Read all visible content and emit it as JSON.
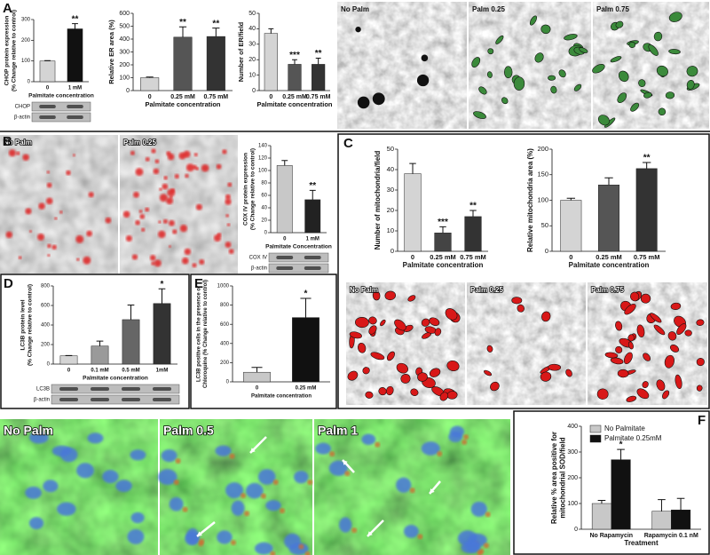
{
  "panel_letters": [
    "A",
    "B",
    "C",
    "D",
    "E",
    "F"
  ],
  "micrographs": [
    [
      "No Palm",
      "Palm 0.25",
      "Palm 0.75"
    ],
    [
      "No Palm",
      "Palm 0.25"
    ],
    [
      "No Palm",
      "Palm 0.25",
      "Palm 0.75"
    ],
    [
      "No Palm",
      "Palm 0.5",
      "Palm 1"
    ]
  ],
  "chart_data": [
    {
      "type": "bar",
      "ylabel": [
        "CHOP protein expression",
        "(% Change relative to control)"
      ],
      "xlabel": "Palmitate concentration",
      "categories": [
        "0",
        "1 mM"
      ],
      "values": [
        100,
        255
      ],
      "errors": [
        2,
        25
      ],
      "stars": [
        null,
        "**"
      ],
      "colors": [
        "#d4d4d4",
        "#111111"
      ],
      "ylim": [
        0,
        300
      ],
      "yticks": [
        0,
        100,
        200,
        300
      ],
      "blot": [
        "CHOP",
        "β-actin"
      ]
    },
    {
      "type": "bar",
      "ylabel": [
        "Relative ER area (%)"
      ],
      "xlabel": "Palmitate concentration",
      "categories": [
        "0",
        "0.25 mM",
        "0.75 mM"
      ],
      "values": [
        100,
        415,
        420
      ],
      "errors": [
        5,
        80,
        65
      ],
      "stars": [
        null,
        "**",
        "**"
      ],
      "colors": [
        "#d4d4d4",
        "#555555",
        "#333333"
      ],
      "ylim": [
        0,
        600
      ],
      "yticks": [
        0,
        100,
        200,
        300,
        400,
        500,
        600
      ]
    },
    {
      "type": "bar",
      "ylabel": [
        "Number of ER/field"
      ],
      "xlabel": "Palmitate concentration",
      "categories": [
        "0",
        "0.25 mM",
        "0.75 mM"
      ],
      "values": [
        37,
        17,
        17
      ],
      "errors": [
        3,
        3,
        4
      ],
      "stars": [
        null,
        "***",
        "**"
      ],
      "colors": [
        "#d4d4d4",
        "#555555",
        "#333333"
      ],
      "ylim": [
        0,
        50
      ],
      "yticks": [
        0,
        10,
        20,
        30,
        40,
        50
      ]
    },
    {
      "type": "bar",
      "ylabel": [
        "COX IV protein expression",
        "(% Change relative to control)"
      ],
      "xlabel": "Palmitate Concentration",
      "categories": [
        "0",
        "1 mM"
      ],
      "values": [
        108,
        53
      ],
      "errors": [
        8,
        15
      ],
      "stars": [
        null,
        "**"
      ],
      "colors": [
        "#c8c8c8",
        "#222222"
      ],
      "ylim": [
        0,
        140
      ],
      "yticks": [
        0,
        20,
        40,
        60,
        80,
        100,
        120,
        140
      ],
      "blot": [
        "COX IV",
        "β-actin"
      ]
    },
    {
      "type": "bar",
      "ylabel": [
        "Number of mitochondria/field"
      ],
      "xlabel": "Palmitate concentration",
      "categories": [
        "0",
        "0.25 mM",
        "0.75 mM"
      ],
      "values": [
        38,
        9,
        17
      ],
      "errors": [
        5,
        3,
        3
      ],
      "stars": [
        null,
        "***",
        "**"
      ],
      "colors": [
        "#d4d4d4",
        "#444444",
        "#333333"
      ],
      "ylim": [
        0,
        50
      ],
      "yticks": [
        0,
        10,
        20,
        30,
        40,
        50
      ]
    },
    {
      "type": "bar",
      "ylabel": [
        "Relative mitochondria area (%)"
      ],
      "xlabel": "Palmitate concentration",
      "categories": [
        "0",
        "0.25 mM",
        "0.75 mM"
      ],
      "values": [
        100,
        130,
        162
      ],
      "errors": [
        4,
        14,
        12
      ],
      "stars": [
        null,
        null,
        "**"
      ],
      "colors": [
        "#d4d4d4",
        "#555555",
        "#333333"
      ],
      "ylim": [
        0,
        200
      ],
      "yticks": [
        0,
        50,
        100,
        150,
        200
      ]
    },
    {
      "type": "bar",
      "ylabel": [
        "LC3B protein level",
        "(% Change relative to control)"
      ],
      "xlabel": "Palmitate concentration",
      "categories": [
        "0",
        "0.1 mM",
        "0.5 mM",
        "1mM"
      ],
      "values": [
        85,
        185,
        455,
        620
      ],
      "errors": [
        3,
        50,
        150,
        150
      ],
      "stars": [
        null,
        null,
        null,
        "*"
      ],
      "colors": [
        "#d4d4d4",
        "#9a9a9a",
        "#666666",
        "#333333"
      ],
      "ylim": [
        0,
        800
      ],
      "yticks": [
        0,
        200,
        400,
        600,
        800
      ],
      "blot": [
        "LC3B",
        "β-actin"
      ]
    },
    {
      "type": "bar",
      "ylabel": [
        "LC3B positive cells in the presence of",
        "Chloroquine (% Change relative to control)"
      ],
      "xlabel": "Palmitate concentration",
      "categories": [
        "0",
        "0.25 mM"
      ],
      "values": [
        100,
        670
      ],
      "errors": [
        50,
        200
      ],
      "stars": [
        null,
        "*"
      ],
      "colors": [
        "#c8c8c8",
        "#111111"
      ],
      "ylim": [
        0,
        1000
      ],
      "yticks": [
        0,
        200,
        400,
        600,
        800,
        1000
      ]
    },
    {
      "type": "bar",
      "ylabel": [
        "Relative % area positive for",
        "mitochondrial SOD/field"
      ],
      "xlabel": "Treatment",
      "categories": [
        "No Rapamycin",
        "Rapamycin 0.1 nM"
      ],
      "series": [
        {
          "name": "No Palmitate",
          "color": "#c8c8c8",
          "values": [
            100,
            70
          ],
          "errors": [
            12,
            45
          ],
          "stars": [
            null,
            null
          ]
        },
        {
          "name": "Palmitate 0.25mM",
          "color": "#111111",
          "values": [
            270,
            75
          ],
          "errors": [
            40,
            45
          ],
          "stars": [
            "*",
            null
          ]
        }
      ],
      "ylim": [
        0,
        400
      ],
      "yticks": [
        0,
        100,
        200,
        300,
        400
      ]
    }
  ]
}
